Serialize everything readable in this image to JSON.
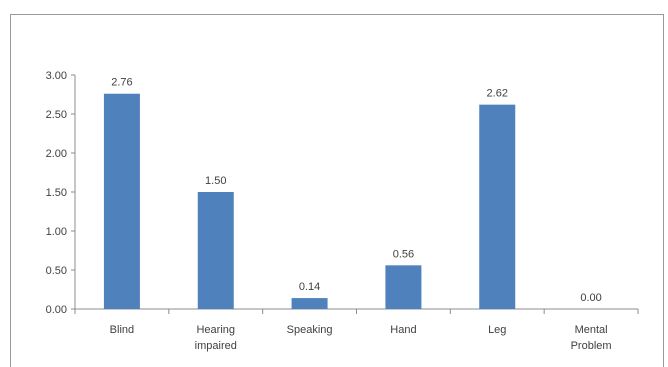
{
  "chart_data": {
    "type": "bar",
    "title": "",
    "xlabel": "",
    "ylabel": "",
    "categories": [
      [
        "Blind"
      ],
      [
        "Hearing",
        "impaired"
      ],
      [
        "Speaking"
      ],
      [
        "Hand"
      ],
      [
        "Leg"
      ],
      [
        "Mental",
        "Problem"
      ]
    ],
    "values": [
      2.76,
      1.5,
      0.14,
      0.56,
      2.62,
      0.0
    ],
    "data_labels": [
      "2.76",
      "1.50",
      "0.14",
      "0.56",
      "2.62",
      "0.00"
    ],
    "ylim": [
      0,
      3.0
    ],
    "yticks": [
      "0.00",
      "0.50",
      "1.00",
      "1.50",
      "2.00",
      "2.50",
      "3.00"
    ],
    "bar_color": "#4f81bd",
    "grid": false,
    "legend": "none"
  }
}
